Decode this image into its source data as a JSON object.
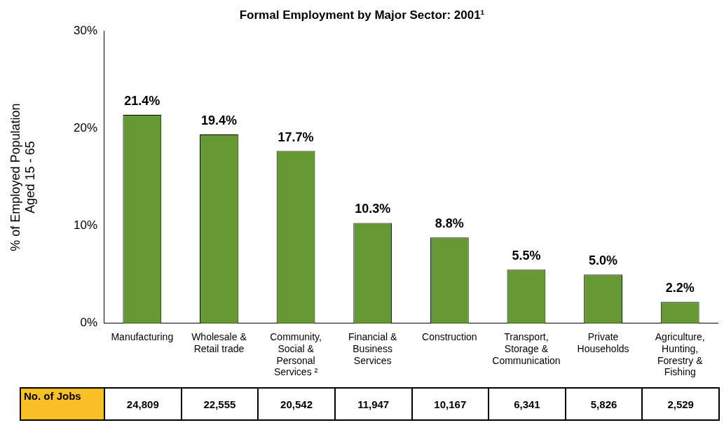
{
  "chart_data": {
    "type": "bar",
    "title": "Formal Employment by Major Sector: 2001¹",
    "ylabel": "% of Employed Population\nAged 15 - 65",
    "categories": [
      "Manufacturing",
      "Wholesale &\nRetail trade",
      "Community,\nSocial &\nPersonal\nServices ²",
      "Financial &\nBusiness\nServices",
      "Construction",
      "Transport,\nStorage &\nCommunication",
      "Private\nHouseholds",
      "Agriculture,\nHunting,\nForestry &\nFishing"
    ],
    "values": [
      21.4,
      19.4,
      17.7,
      10.3,
      8.8,
      5.5,
      5.0,
      2.2
    ],
    "value_labels": [
      "21.4%",
      "19.4%",
      "17.7%",
      "10.3%",
      "8.8%",
      "5.5%",
      "5.0%",
      "2.2%"
    ],
    "color": "#669933",
    "ylim": [
      0,
      30
    ],
    "yticks": [
      {
        "value": 0,
        "label": "0%"
      },
      {
        "value": 10,
        "label": "10%"
      },
      {
        "value": 20,
        "label": "20%"
      },
      {
        "value": 30,
        "label": "30%"
      }
    ],
    "grid": false,
    "legend": false,
    "annotations": [
      "No. of Jobs",
      "24,809",
      "22,555",
      "20,542",
      "11,947",
      "10,167",
      "6,341",
      "5,826",
      "2,529"
    ]
  }
}
